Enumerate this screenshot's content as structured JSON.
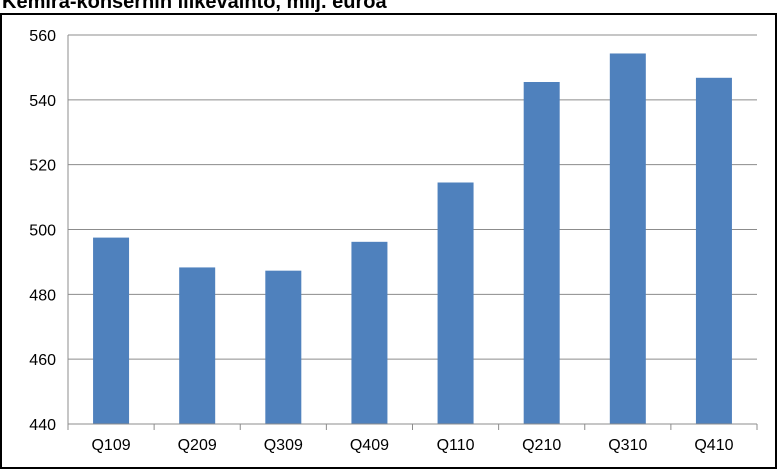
{
  "chart_data": {
    "type": "bar",
    "title": "Kemira-konsernin liikevaihto, milj. euroa",
    "xlabel": "",
    "ylabel": "",
    "categories": [
      "Q109",
      "Q209",
      "Q309",
      "Q409",
      "Q110",
      "Q210",
      "Q310",
      "Q410"
    ],
    "values": [
      497.5,
      488.3,
      487.3,
      496.2,
      514.5,
      545.5,
      554.3,
      546.8
    ],
    "ylim": [
      440,
      560
    ],
    "yticks": [
      440,
      460,
      480,
      500,
      520,
      540,
      560
    ],
    "grid": true,
    "legend": "none",
    "bar_color": "#4f81bd"
  }
}
